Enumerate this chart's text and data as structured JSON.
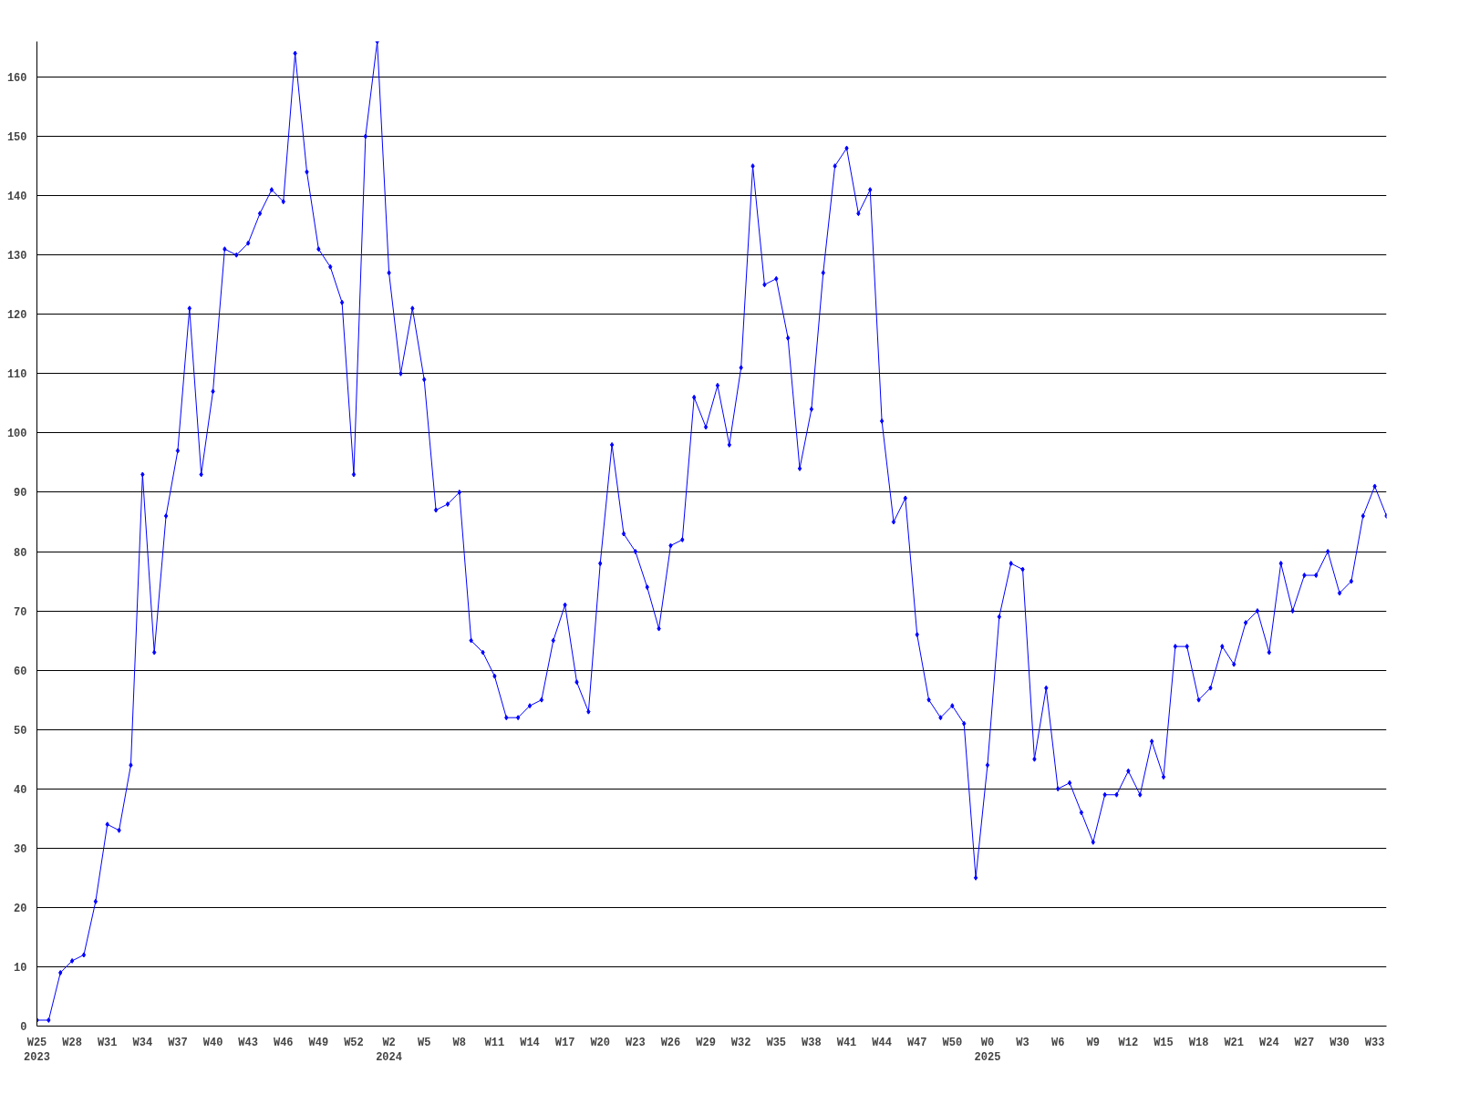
{
  "chart_data": {
    "type": "line",
    "categories": [
      "W25\n2023",
      null,
      null,
      "W28",
      null,
      null,
      "W31",
      null,
      null,
      "W34",
      null,
      null,
      "W37",
      null,
      null,
      "W40",
      null,
      null,
      "W43",
      null,
      null,
      "W46",
      null,
      null,
      "W49",
      null,
      null,
      "W52",
      null,
      null,
      "W2\n2024",
      null,
      null,
      "W5",
      null,
      null,
      "W8",
      null,
      null,
      "W11",
      null,
      null,
      "W14",
      null,
      null,
      "W17",
      null,
      null,
      "W20",
      null,
      null,
      "W23",
      null,
      null,
      "W26",
      null,
      null,
      "W29",
      null,
      null,
      "W32",
      null,
      null,
      "W35",
      null,
      null,
      "W38",
      null,
      null,
      "W41",
      null,
      null,
      "W44",
      null,
      null,
      "W47",
      null,
      null,
      "W50",
      null,
      null,
      "W0\n2025",
      null,
      null,
      "W3",
      null,
      null,
      "W6",
      null,
      null,
      "W9",
      null,
      null,
      "W12",
      null,
      null,
      "W15",
      null,
      null,
      "W18",
      null,
      null,
      "W21",
      null,
      null,
      "W24",
      null,
      null,
      "W27",
      null,
      null,
      "W30",
      null,
      null,
      "W33",
      null
    ],
    "series": [
      {
        "color": "#0000ff",
        "values": [
          1,
          1,
          9,
          11,
          12,
          21,
          34,
          33,
          44,
          93,
          63,
          86,
          97,
          121,
          93,
          107,
          131,
          130,
          132,
          137,
          141,
          139,
          164,
          144,
          131,
          128,
          122,
          93,
          150,
          166,
          127,
          110,
          121,
          109,
          87,
          88,
          90,
          65,
          63,
          59,
          52,
          52,
          54,
          55,
          65,
          71,
          58,
          53,
          78,
          98,
          83,
          80,
          74,
          67,
          81,
          82,
          106,
          101,
          108,
          98,
          111,
          145,
          125,
          126,
          116,
          94,
          104,
          127,
          145,
          148,
          137,
          141,
          102,
          85,
          89,
          66,
          55,
          52,
          54,
          51,
          25,
          44,
          69,
          78,
          77,
          45,
          57,
          40,
          41,
          36,
          31,
          39,
          39,
          43,
          39,
          48,
          42,
          64,
          64,
          55,
          57,
          64,
          61,
          68,
          70,
          63,
          78,
          70,
          76,
          76,
          80,
          73,
          75,
          86,
          91,
          86
        ]
      }
    ],
    "ylim": [
      0,
      166
    ],
    "yticks": [
      0,
      10,
      20,
      30,
      40,
      50,
      60,
      70,
      80,
      90,
      100,
      110,
      120,
      130,
      140,
      150,
      160
    ],
    "grid": "y",
    "marker": "diamond",
    "line_style": "solid"
  }
}
